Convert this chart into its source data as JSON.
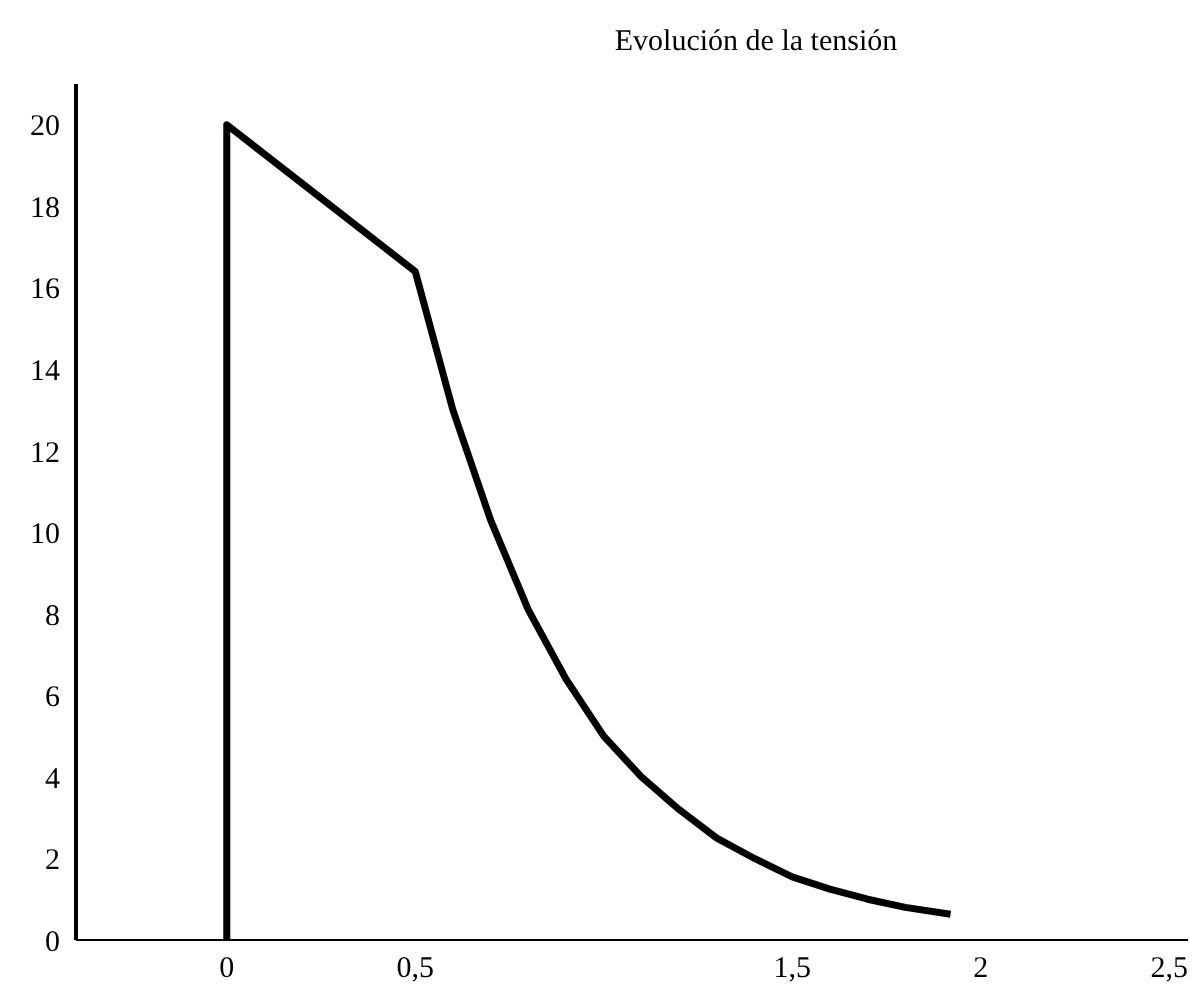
{
  "chart_data": {
    "type": "line",
    "title": "Evolución  de la tensión",
    "x": [
      0,
      0,
      0.5,
      0.6,
      0.7,
      0.8,
      0.9,
      1.0,
      1.1,
      1.2,
      1.3,
      1.4,
      1.5,
      1.6,
      1.7,
      1.8,
      1.92
    ],
    "series": [
      {
        "color": "#000000",
        "values": [
          0,
          20,
          16.4,
          13.0,
          10.3,
          8.1,
          6.4,
          5.0,
          4.0,
          3.2,
          2.5,
          2.0,
          1.55,
          1.25,
          1.0,
          0.8,
          0.63
        ]
      }
    ],
    "xlim": [
      -0.4,
      2.55
    ],
    "xticks": [
      0,
      {
        "value": 0.5,
        "label": "0,5"
      },
      {
        "value": 1.5,
        "label": "1,5"
      },
      2,
      {
        "value": 2.5,
        "label": "2,5"
      }
    ],
    "ylim": [
      0,
      21
    ],
    "yticks": [
      0,
      2,
      4,
      6,
      8,
      10,
      12,
      14,
      16,
      18,
      20
    ],
    "grid": false,
    "legend": false,
    "marker": "none",
    "line_style": "solid"
  }
}
